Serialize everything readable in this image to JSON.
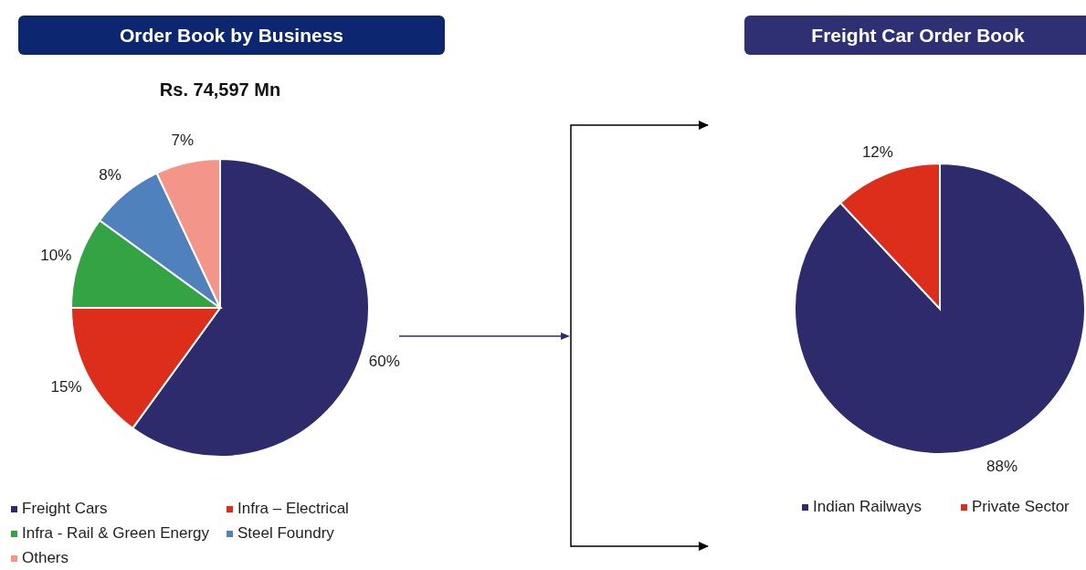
{
  "chart_data": [
    {
      "type": "pie",
      "title": "Order Book by Business",
      "subtitle": "Rs. 74,597 Mn",
      "categories": [
        "Freight Cars",
        "Infra – Electrical",
        "Infra - Rail & Green Energy",
        "Steel Foundry",
        "Others"
      ],
      "values": [
        60,
        15,
        10,
        8,
        7
      ],
      "colors": [
        "#2d2b6b",
        "#dc2e1a",
        "#34a344",
        "#4f81bd",
        "#f4958a"
      ],
      "value_labels": [
        "60%",
        "15%",
        "10%",
        "8%",
        "7%"
      ],
      "legend": "bottom"
    },
    {
      "type": "pie",
      "title": "Freight Car Order Book",
      "categories": [
        "Indian Railways",
        "Private Sector"
      ],
      "values": [
        88,
        12
      ],
      "colors": [
        "#2d2b6b",
        "#dc2e1a"
      ],
      "value_labels": [
        "88%",
        "12%"
      ],
      "legend": "bottom"
    }
  ]
}
